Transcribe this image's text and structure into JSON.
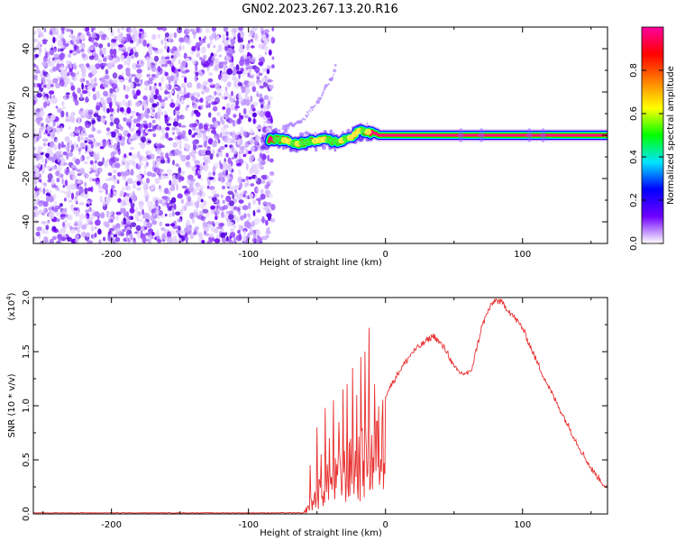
{
  "title": "GN02.2023.267.13.20.R16",
  "chart_data": [
    {
      "type": "heatmap",
      "xlabel": "Height of straight line (km)",
      "ylabel": "Frequency (Hz)",
      "xlim": [
        -257,
        162
      ],
      "ylim": [
        -50,
        50
      ],
      "xticks": [
        -200,
        -100,
        0,
        100
      ],
      "yticks": [
        -40,
        -20,
        0,
        20,
        40
      ],
      "colorbar": {
        "label": "Normalized spectral amplitude",
        "range": [
          0.0,
          1.0
        ],
        "ticks": [
          0.0,
          0.2,
          0.4,
          0.6,
          0.8
        ],
        "tick_labels": [
          "0.0",
          "0.2",
          "0.4",
          "0.6",
          "0.8"
        ],
        "colors": [
          "#ffffff",
          "#6f00ff",
          "#0000ff",
          "#00e5ff",
          "#00ff00",
          "#ffff00",
          "#ff8000",
          "#ff0000",
          "#ff00a0"
        ]
      },
      "noise_region_x": [
        -257,
        -82
      ],
      "signal_ridge": {
        "x": [
          -85,
          -75,
          -65,
          -55,
          -45,
          -35,
          -25,
          -20,
          -15,
          -10,
          -5,
          0,
          50,
          100,
          162
        ],
        "frequency": [
          -2,
          -2,
          -4,
          -3,
          -2,
          -3,
          -1,
          2,
          2,
          1,
          0,
          0,
          0,
          0,
          0
        ]
      },
      "faint_branch": {
        "x": [
          -75,
          -60,
          -48,
          -38,
          -36
        ],
        "frequency": [
          3,
          7,
          17,
          28,
          33
        ]
      }
    },
    {
      "type": "line",
      "xlabel": "Height of straight line (km)",
      "ylabel": "SNR (10 * v/v)",
      "multiplier_label": "(x10",
      "multiplier_exp": "4",
      "xlim": [
        -257,
        162
      ],
      "ylim": [
        0,
        2.0
      ],
      "xticks": [
        -200,
        -100,
        0,
        100
      ],
      "yticks": [
        0.0,
        0.5,
        1.0,
        1.5,
        2.0
      ],
      "ytick_labels": [
        "0.0",
        "0.5",
        "1.0",
        "1.5",
        "2.0"
      ],
      "color": "#e83030",
      "envelope": {
        "x": [
          -257,
          -60,
          -55,
          -45,
          -35,
          -25,
          -15,
          -10,
          -5,
          0,
          10,
          20,
          30,
          35,
          45,
          50,
          55,
          62,
          65,
          70,
          75,
          80,
          85,
          90,
          100,
          110,
          120,
          130,
          140,
          150,
          162
        ],
        "y": [
          0.01,
          0.01,
          0.12,
          0.38,
          0.48,
          0.62,
          0.72,
          0.78,
          0.9,
          1.1,
          1.32,
          1.5,
          1.6,
          1.65,
          1.5,
          1.35,
          1.3,
          1.3,
          1.45,
          1.72,
          1.88,
          1.98,
          1.95,
          1.88,
          1.72,
          1.42,
          1.15,
          0.9,
          0.65,
          0.42,
          0.23
        ]
      },
      "spikes": [
        {
          "x": -55,
          "y": 0.45
        },
        {
          "x": -50,
          "y": 0.8
        },
        {
          "x": -47,
          "y": 0.55
        },
        {
          "x": -44,
          "y": 0.98
        },
        {
          "x": -41,
          "y": 0.7
        },
        {
          "x": -38,
          "y": 1.05
        },
        {
          "x": -34,
          "y": 0.85
        },
        {
          "x": -31,
          "y": 1.15
        },
        {
          "x": -28,
          "y": 1.2
        },
        {
          "x": -24,
          "y": 1.35
        },
        {
          "x": -21,
          "y": 1.1
        },
        {
          "x": -18,
          "y": 1.45
        },
        {
          "x": -15,
          "y": 1.5
        },
        {
          "x": -12,
          "y": 1.72
        },
        {
          "x": -8,
          "y": 1.2
        }
      ]
    }
  ]
}
